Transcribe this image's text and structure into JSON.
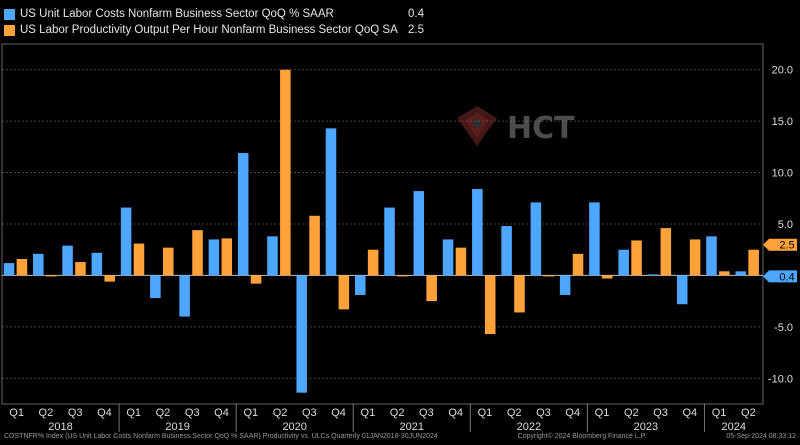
{
  "chart_data": {
    "type": "bar",
    "categories": [
      "Q1",
      "Q2",
      "Q3",
      "Q4",
      "Q1",
      "Q2",
      "Q3",
      "Q4",
      "Q1",
      "Q2",
      "Q3",
      "Q4",
      "Q1",
      "Q2",
      "Q3",
      "Q4",
      "Q1",
      "Q2",
      "Q3",
      "Q4",
      "Q1",
      "Q2",
      "Q3",
      "Q4",
      "Q1",
      "Q2"
    ],
    "years": [
      "2018",
      "2019",
      "2020",
      "2021",
      "2022",
      "2023",
      "2024"
    ],
    "series": [
      {
        "name": "US Unit Labor Costs Nonfarm Business Sector QoQ % SAAR",
        "last": "0.4",
        "color": "#4da6ff",
        "values": [
          1.2,
          2.1,
          2.9,
          2.2,
          6.6,
          -2.2,
          -4.0,
          3.5,
          11.9,
          3.8,
          -11.4,
          14.3,
          -1.9,
          6.6,
          8.2,
          3.5,
          8.4,
          4.8,
          7.1,
          -1.9,
          7.1,
          2.5,
          0.1,
          -2.8,
          3.8,
          0.4
        ]
      },
      {
        "name": "US Labor Productivity Output Per Hour Nonfarm Business Sector QoQ SA",
        "last": "2.5",
        "color": "#ffa23a",
        "values": [
          1.6,
          0.0,
          1.3,
          -0.6,
          3.1,
          2.7,
          4.4,
          3.6,
          -0.8,
          20.0,
          5.8,
          -3.3,
          2.5,
          0.0,
          -2.5,
          2.7,
          -5.7,
          -3.6,
          0.0,
          2.1,
          -0.3,
          3.4,
          4.6,
          3.5,
          0.4,
          2.5
        ]
      }
    ],
    "ylim": [
      -12.5,
      22.5
    ],
    "yticks": [
      -10.0,
      -5.0,
      0.0,
      5.0,
      10.0,
      15.0,
      20.0
    ],
    "ytick_labels": [
      "-10.0",
      "-5.0",
      "0.0",
      "5.0",
      "10.0",
      "15.0",
      "20.0"
    ],
    "grid": true,
    "legend": "top-left"
  },
  "footer": {
    "left": "COSTNFR% Index (US Unit Labor Costs Nonfarm Business Sector QoQ % SAAR) Productivity vs. ULCs Quarterly 01JAN2018-30JUN2024",
    "center": "Copyright© 2024 Bloomberg Finance L.P.",
    "right": "05-Sep-2024 08:33:12"
  },
  "watermark": {
    "text": "HCT"
  },
  "colors": {
    "background": "#000000",
    "grid": "#555555",
    "axis_text": "#dddddd"
  }
}
